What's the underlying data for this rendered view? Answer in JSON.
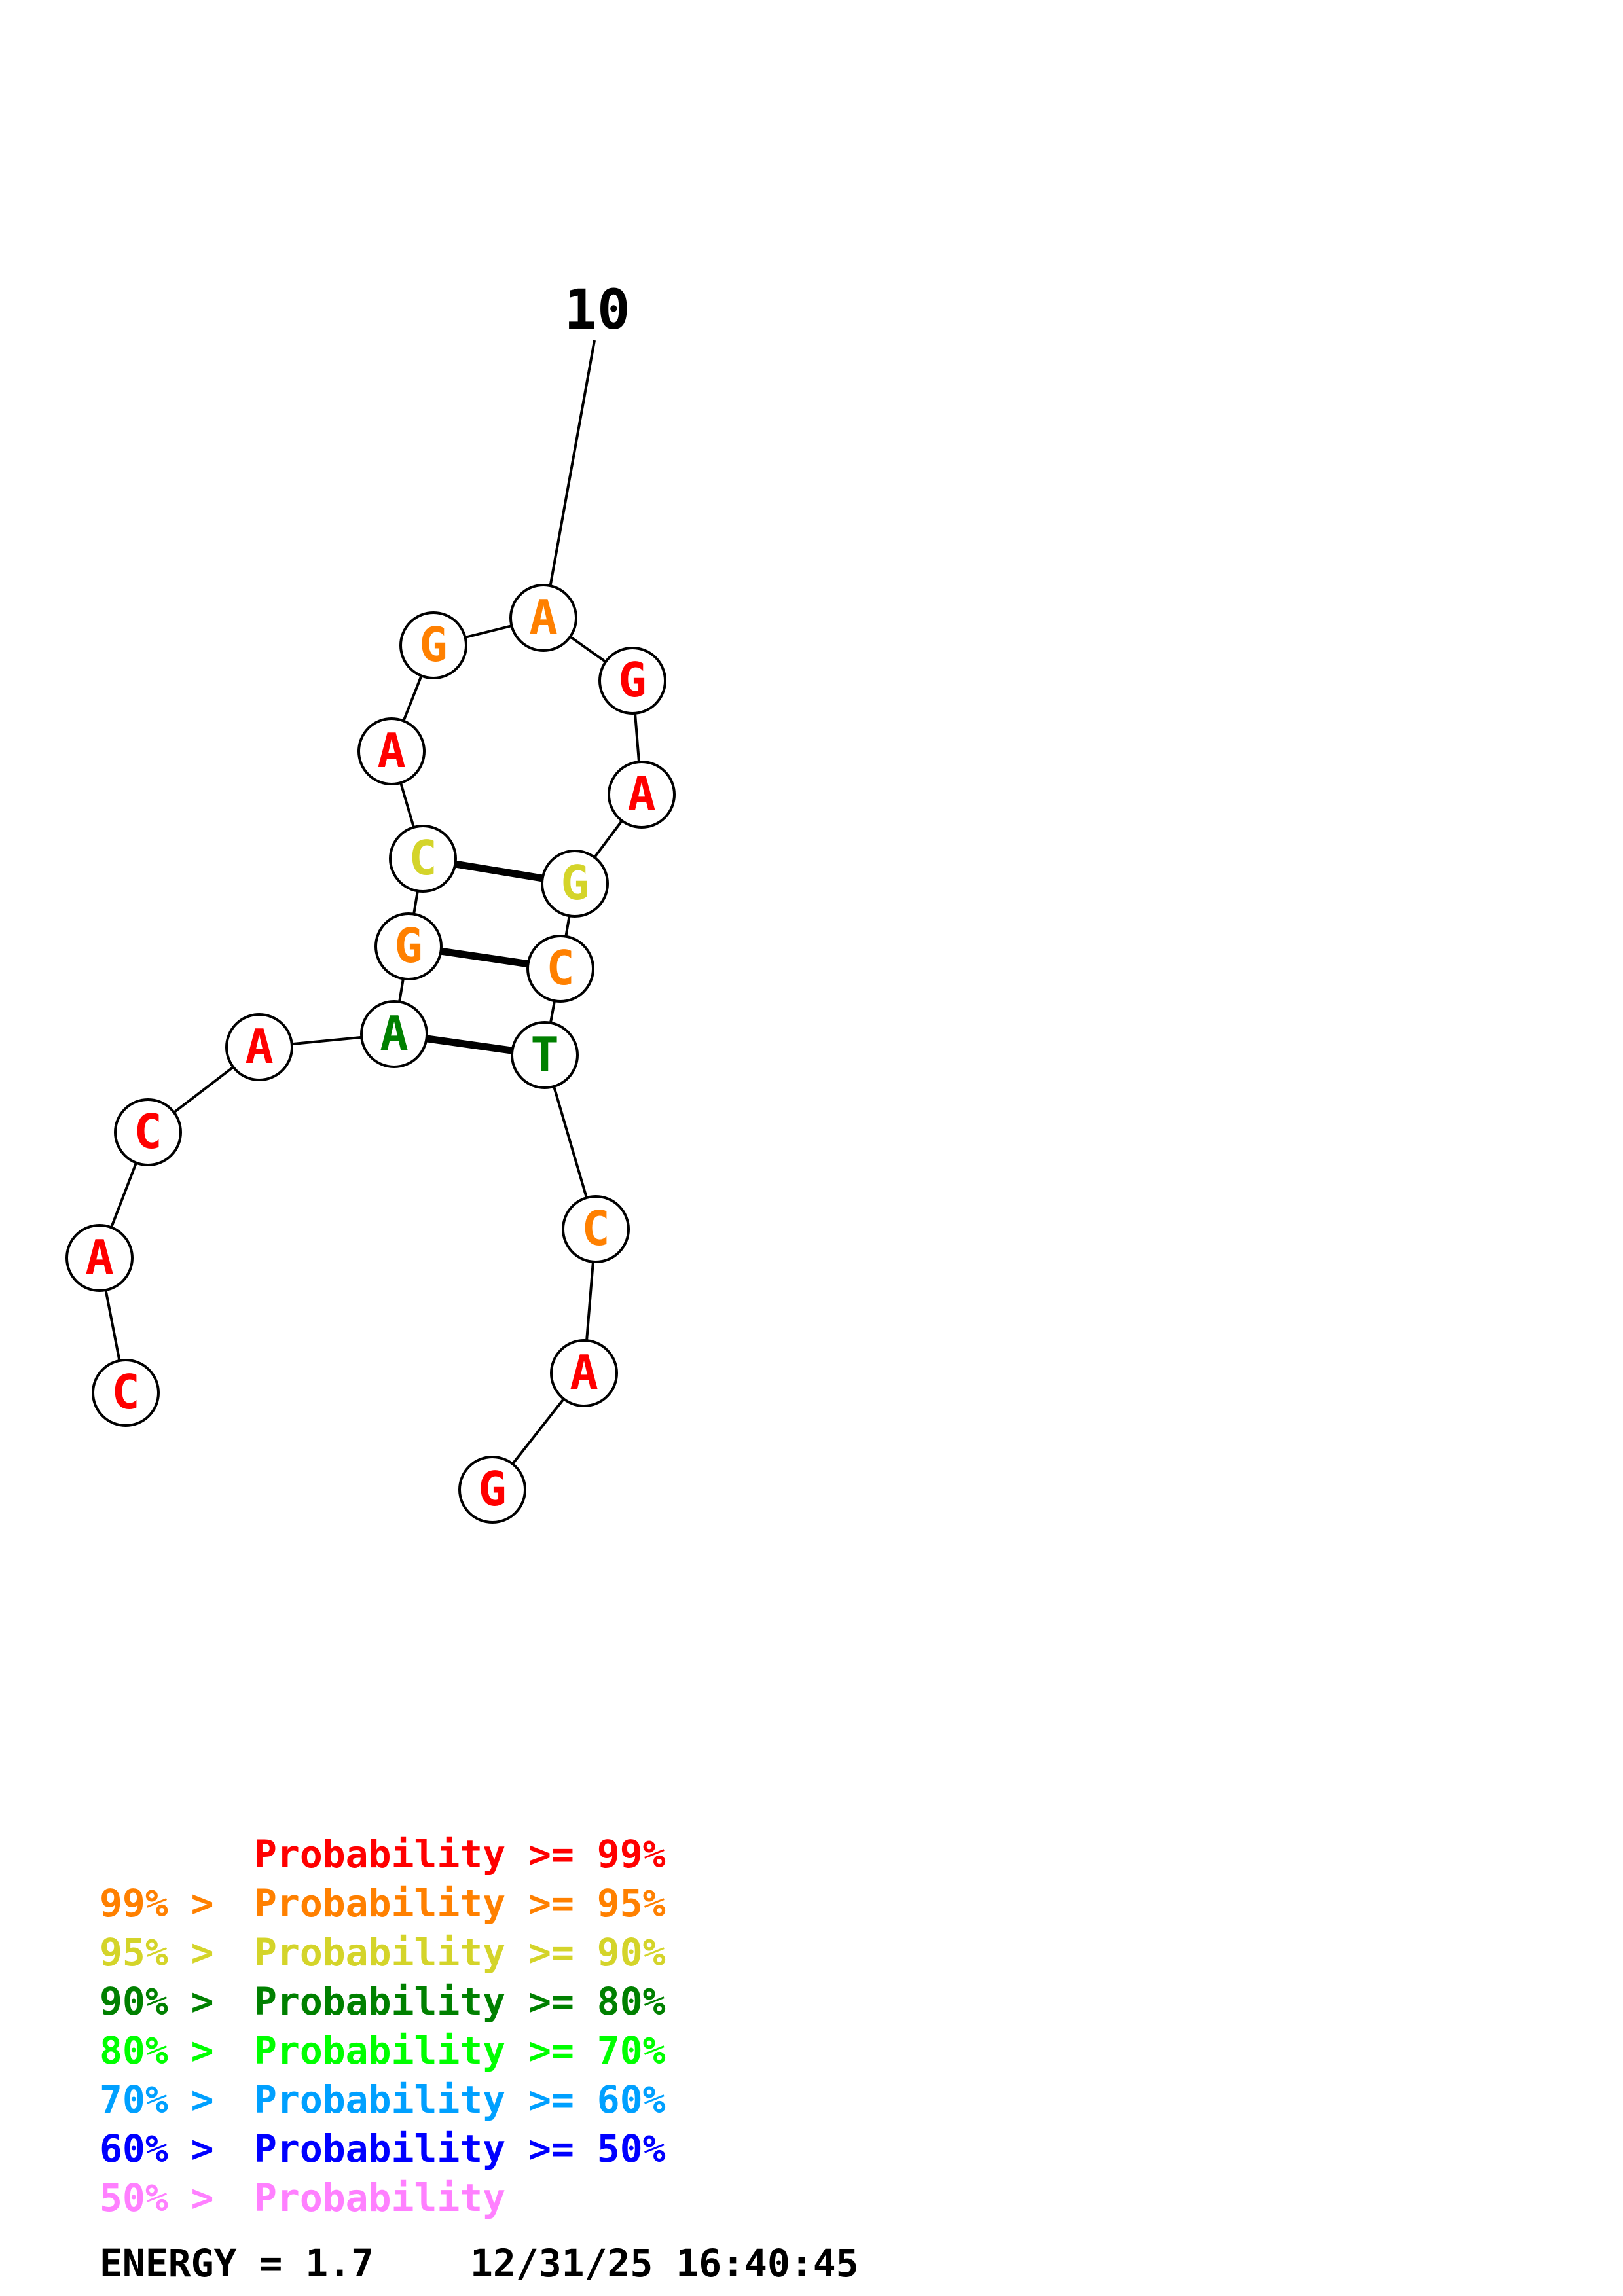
{
  "structure": {
    "tick_label": "10",
    "nucleotides": [
      {
        "base": "C",
        "color": "#ff0000"
      },
      {
        "base": "A",
        "color": "#ff0000"
      },
      {
        "base": "C",
        "color": "#ff0000"
      },
      {
        "base": "A",
        "color": "#ff0000"
      },
      {
        "base": "A",
        "color": "#008000"
      },
      {
        "base": "G",
        "color": "#ff8000"
      },
      {
        "base": "C",
        "color": "#d4d42a"
      },
      {
        "base": "A",
        "color": "#ff0000"
      },
      {
        "base": "G",
        "color": "#ff8000"
      },
      {
        "base": "A",
        "color": "#ff8000"
      },
      {
        "base": "G",
        "color": "#ff0000"
      },
      {
        "base": "A",
        "color": "#ff0000"
      },
      {
        "base": "G",
        "color": "#d4d42a"
      },
      {
        "base": "C",
        "color": "#ff8000"
      },
      {
        "base": "T",
        "color": "#008000"
      },
      {
        "base": "C",
        "color": "#ff8000"
      },
      {
        "base": "A",
        "color": "#ff0000"
      },
      {
        "base": "G",
        "color": "#ff0000"
      }
    ],
    "pairs": [
      [
        5,
        15
      ],
      [
        6,
        14
      ],
      [
        7,
        13
      ]
    ],
    "tick_index": 10
  },
  "legend": {
    "lines": [
      {
        "prefix": "",
        "text": "Probability >= 99%",
        "color": "#ff0000"
      },
      {
        "prefix": "99% > ",
        "text": "Probability >= 95%",
        "color": "#ff8000"
      },
      {
        "prefix": "95% > ",
        "text": "Probability >= 90%",
        "color": "#d4d42a"
      },
      {
        "prefix": "90% > ",
        "text": "Probability >= 80%",
        "color": "#008000"
      },
      {
        "prefix": "80% > ",
        "text": "Probability >= 70%",
        "color": "#00ff00"
      },
      {
        "prefix": "70% > ",
        "text": "Probability >= 60%",
        "color": "#00a0ff"
      },
      {
        "prefix": "60% > ",
        "text": "Probability >= 50%",
        "color": "#0000ff"
      },
      {
        "prefix": "50% > ",
        "text": "Probability",
        "color": "#ff80ff"
      }
    ]
  },
  "footer": {
    "energy": "ENERGY = 1.7",
    "timestamp": "12/31/25 16:40:45"
  }
}
